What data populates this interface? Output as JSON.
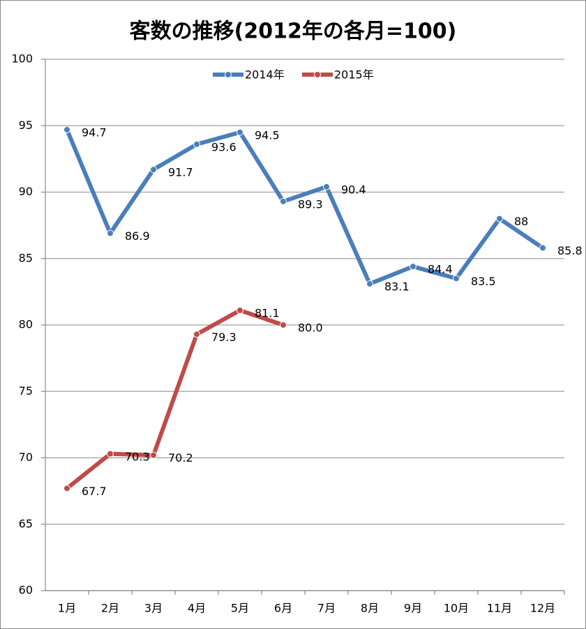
{
  "chart_data": {
    "type": "line",
    "title": "客数の推移(2012年の各月=100)",
    "categories": [
      "1月",
      "2月",
      "3月",
      "4月",
      "5月",
      "6月",
      "7月",
      "8月",
      "9月",
      "10月",
      "11月",
      "12月"
    ],
    "series": [
      {
        "name": "2014年",
        "color": "#4a7ebb",
        "values": [
          94.7,
          86.9,
          91.7,
          93.6,
          94.5,
          89.3,
          90.4,
          83.1,
          84.4,
          83.5,
          88,
          85.8
        ]
      },
      {
        "name": "2015年",
        "color": "#be4b48",
        "values": [
          67.7,
          70.3,
          70.2,
          79.3,
          81.1,
          80,
          null,
          null,
          null,
          null,
          null,
          null
        ],
        "value_labels": [
          "67.7",
          "70.3",
          "70.2",
          "79.3",
          "81.1",
          "80.0",
          null,
          null,
          null,
          null,
          null,
          null
        ]
      }
    ],
    "ylim": [
      60,
      100
    ],
    "yticks": [
      60,
      65,
      70,
      75,
      80,
      85,
      90,
      95,
      100
    ],
    "grid": true,
    "legend": "top"
  }
}
